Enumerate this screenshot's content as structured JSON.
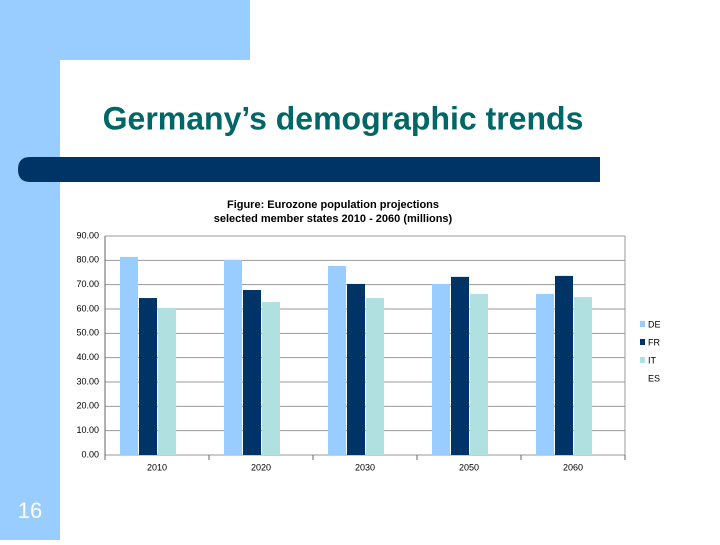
{
  "slide_title": "Germany’s demographic trends",
  "page_number": "16",
  "chart_data": {
    "type": "bar",
    "title": [
      "Figure: Eurozone population projections",
      "selected member states 2010 - 2060 (millions)"
    ],
    "categories": [
      "2010",
      "2020",
      "2030",
      "2050",
      "2060"
    ],
    "series": [
      {
        "name": "DE",
        "color": "#99ccff",
        "values": [
          81.4,
          80.1,
          77.7,
          70.3,
          66.2
        ]
      },
      {
        "name": "FR",
        "color": "#003366",
        "values": [
          64.5,
          67.8,
          70.3,
          73.2,
          73.6
        ]
      },
      {
        "name": "IT",
        "color": "#b0e0e0",
        "values": [
          60.4,
          62.9,
          64.5,
          66.2,
          64.9
        ]
      },
      {
        "name": "ES",
        "values": [
          null,
          null,
          null,
          null,
          null
        ]
      }
    ],
    "ylim": [
      0,
      90
    ],
    "yticks": [
      {
        "value": 0,
        "label": "0.00"
      },
      {
        "value": 10,
        "label": "10.00"
      },
      {
        "value": 20,
        "label": "20.00"
      },
      {
        "value": 30,
        "label": "30.00"
      },
      {
        "value": 40,
        "label": "40.00"
      },
      {
        "value": 50,
        "label": "50.00"
      },
      {
        "value": 60,
        "label": "60.00"
      },
      {
        "value": 70,
        "label": "70.00"
      },
      {
        "value": 80,
        "label": "80.00"
      },
      {
        "value": 90,
        "label": "90.00"
      }
    ],
    "grid": true,
    "legend": "right"
  }
}
